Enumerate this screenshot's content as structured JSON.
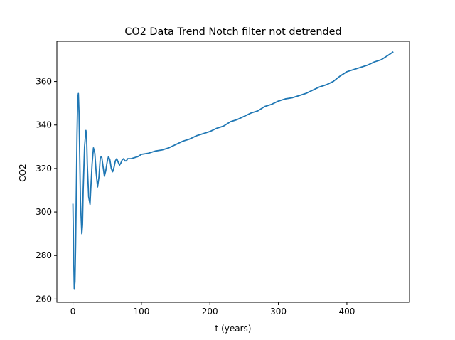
{
  "chart_data": {
    "type": "line",
    "title": "CO2 Data Trend Notch filter not detrended",
    "xlabel": "t (years)",
    "ylabel": "CO2",
    "xlim": [
      -23.4,
      491.4
    ],
    "ylim": [
      258.5,
      378.5
    ],
    "xticks": [
      0,
      100,
      200,
      300,
      400
    ],
    "xtick_labels": [
      "0",
      "100",
      "200",
      "300",
      "400"
    ],
    "yticks": [
      260,
      280,
      300,
      320,
      340,
      360
    ],
    "ytick_labels": [
      "260",
      "280",
      "300",
      "320",
      "340",
      "360"
    ],
    "grid": false,
    "legend": "none",
    "series": [
      {
        "color": "#1f77b4",
        "x": [
          0,
          1,
          2,
          3,
          4,
          5,
          6,
          7,
          8,
          9,
          10,
          11,
          13,
          14,
          15,
          17,
          19,
          20,
          21,
          23,
          25,
          26,
          28,
          30,
          32,
          34,
          36,
          38,
          40,
          42,
          44,
          46,
          48,
          50,
          52,
          54,
          56,
          58,
          60,
          62,
          64,
          66,
          68,
          70,
          72,
          74,
          76,
          78,
          80,
          85,
          90,
          95,
          100,
          110,
          120,
          130,
          140,
          150,
          160,
          170,
          180,
          190,
          200,
          210,
          220,
          230,
          240,
          250,
          260,
          270,
          280,
          290,
          300,
          310,
          320,
          330,
          340,
          350,
          360,
          370,
          380,
          390,
          400,
          410,
          420,
          430,
          440,
          450,
          460,
          467
        ],
        "y": [
          303.5,
          282,
          264.5,
          268,
          285,
          310,
          335,
          352,
          354.5,
          345,
          325,
          305,
          290,
          294,
          310,
          330,
          337.5,
          335,
          322,
          307,
          303.5,
          310,
          322,
          329.5,
          327,
          318,
          311.5,
          316,
          325,
          325.5,
          321,
          316.5,
          319,
          323,
          325.5,
          324,
          320,
          318.5,
          320.5,
          323.5,
          324.5,
          323,
          321.5,
          322.5,
          324,
          324.5,
          323.5,
          323.5,
          324.5,
          324.5,
          325,
          325.5,
          326.5,
          327,
          328,
          328.5,
          329.5,
          331,
          332.5,
          333.5,
          335,
          336,
          337,
          338.5,
          339.5,
          341.5,
          342.5,
          344,
          345.5,
          346.5,
          348.5,
          349.5,
          351,
          352,
          352.5,
          353.5,
          354.5,
          356,
          357.5,
          358.5,
          360,
          362.5,
          364.5,
          365.5,
          366.5,
          367.5,
          369,
          370,
          372,
          373.5
        ]
      }
    ]
  }
}
